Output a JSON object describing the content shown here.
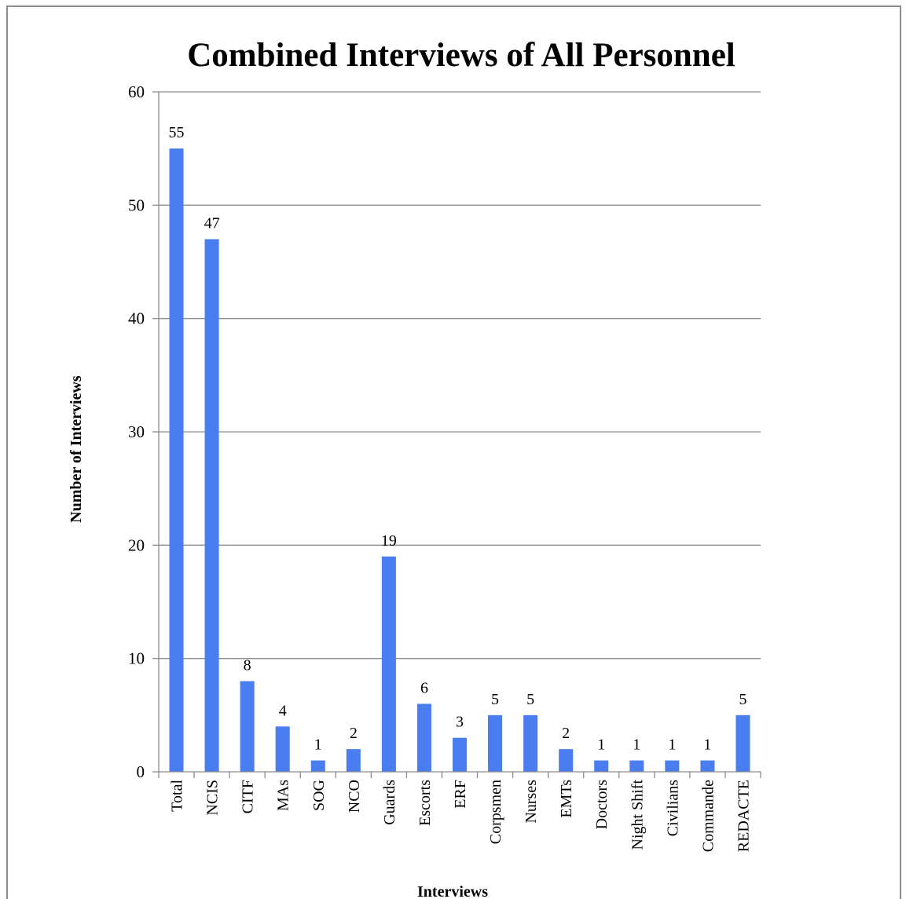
{
  "chart_data": {
    "type": "bar",
    "title": "Combined Interviews of All Personnel",
    "xlabel": "Interviews",
    "ylabel": "Number of Interviews",
    "ylim": [
      0,
      60
    ],
    "yticks": [
      0,
      10,
      20,
      30,
      40,
      50,
      60
    ],
    "grid": true,
    "legend": "none",
    "bar_color": "#4a7ef0",
    "categories": [
      "Total",
      "NCIS",
      "CITF",
      "MAs",
      "SOG",
      "NCO",
      "Guards",
      "Escorts",
      "ERF",
      "Corpsmen",
      "Nurses",
      "EMTs",
      "Doctors",
      "Night Shift",
      "Civilians",
      "Commande",
      "REDACTE"
    ],
    "values": [
      55,
      47,
      8,
      4,
      1,
      2,
      19,
      6,
      3,
      5,
      5,
      2,
      1,
      1,
      1,
      1,
      5
    ]
  }
}
